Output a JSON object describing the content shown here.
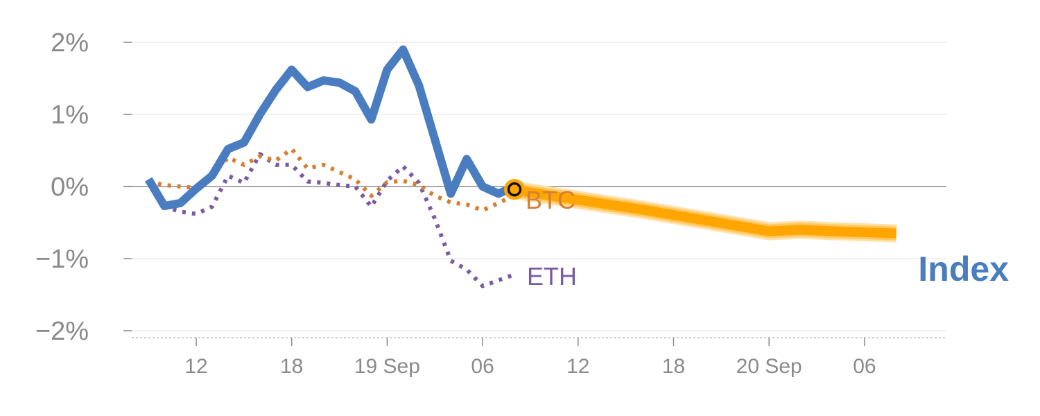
{
  "chart_data": {
    "type": "line",
    "title": "",
    "xlabel": "",
    "ylabel": "",
    "ylim": [
      -2,
      2
    ],
    "grid": true,
    "y_ticks": [
      {
        "value": 2,
        "label": "2%"
      },
      {
        "value": 1,
        "label": "1%"
      },
      {
        "value": 0,
        "label": "0%"
      },
      {
        "value": -1,
        "label": "−1%"
      },
      {
        "value": -2,
        "label": "−2%"
      }
    ],
    "x_ticks": [
      {
        "hour": 12,
        "label": "12"
      },
      {
        "hour": 18,
        "label": "18"
      },
      {
        "hour": 24,
        "label": "19 Sep"
      },
      {
        "hour": 30,
        "label": "06"
      },
      {
        "hour": 36,
        "label": "12"
      },
      {
        "hour": 42,
        "label": "18"
      },
      {
        "hour": 48,
        "label": "20 Sep"
      },
      {
        "hour": 54,
        "label": "06"
      }
    ],
    "series": [
      {
        "name": "Index",
        "color": "#4a7cc0",
        "style": "solid",
        "x": [
          9,
          10,
          11,
          12,
          13,
          14,
          15,
          16,
          17,
          18,
          19,
          20,
          21,
          22,
          23,
          24,
          25,
          26,
          27,
          28,
          29,
          30,
          31,
          32
        ],
        "values": [
          0.1,
          -0.27,
          -0.23,
          -0.03,
          0.15,
          0.52,
          0.61,
          1.0,
          1.34,
          1.62,
          1.38,
          1.47,
          1.44,
          1.32,
          0.93,
          1.62,
          1.9,
          1.4,
          0.65,
          -0.1,
          0.38,
          0.0,
          -0.1,
          0.0
        ]
      },
      {
        "name": "BTC",
        "color": "#d47f35",
        "style": "dotted",
        "x": [
          9,
          10,
          11,
          12,
          13,
          14,
          15,
          16,
          17,
          18,
          19,
          20,
          21,
          22,
          23,
          24,
          25,
          26,
          27,
          28,
          29,
          30,
          31,
          32
        ],
        "values": [
          0.07,
          0.02,
          0.0,
          -0.02,
          0.17,
          0.4,
          0.3,
          0.42,
          0.36,
          0.52,
          0.25,
          0.3,
          0.2,
          0.1,
          -0.13,
          0.06,
          0.08,
          0.02,
          -0.13,
          -0.22,
          -0.25,
          -0.33,
          -0.23,
          -0.12
        ]
      },
      {
        "name": "ETH",
        "color": "#7a5aa3",
        "style": "dotted",
        "x": [
          9,
          10,
          11,
          12,
          13,
          14,
          15,
          16,
          17,
          18,
          19,
          20,
          21,
          22,
          23,
          24,
          25,
          26,
          27,
          28,
          29,
          30,
          31,
          32
        ],
        "values": [
          0.07,
          -0.28,
          -0.35,
          -0.38,
          -0.28,
          0.15,
          0.05,
          0.45,
          0.3,
          0.3,
          0.07,
          0.05,
          0.02,
          0.0,
          -0.28,
          0.08,
          0.28,
          0.05,
          -0.45,
          -1.03,
          -1.15,
          -1.38,
          -1.3,
          -1.22
        ]
      },
      {
        "name": "Index",
        "color": "#ffa500",
        "style": "forecast",
        "x": [
          32,
          40,
          48,
          50,
          52,
          56
        ],
        "values": [
          -0.05,
          -0.32,
          -0.62,
          -0.6,
          -0.62,
          -0.65
        ]
      }
    ],
    "current_point": {
      "x": 32,
      "value": -0.04
    }
  }
}
